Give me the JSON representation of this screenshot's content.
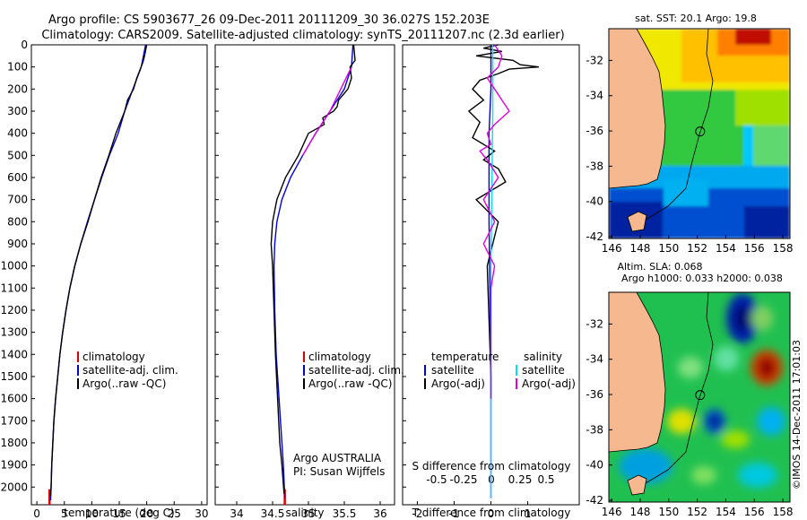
{
  "header": {
    "line1": "Argo profile: CS 5903677_26 09-Dec-2011 20111209_30 36.027S 152.203E",
    "line2": "Climatology: CARS2009. Satellite-adjusted climatology: synTS_20111207.nc (2.3d earlier)"
  },
  "colors": {
    "climatology": "#e00000",
    "satellite": "#0000e0",
    "argo": "#000000",
    "sal_satellite": "#00e0ff",
    "sal_argo": "#e000e0",
    "land": "#f5b88f"
  },
  "depth_ticks": [
    0,
    100,
    200,
    300,
    400,
    500,
    600,
    700,
    800,
    900,
    1000,
    1100,
    1200,
    1300,
    1400,
    1500,
    1600,
    1700,
    1800,
    1900,
    2000
  ],
  "depth_range": [
    0,
    2080
  ],
  "chart_data": [
    {
      "type": "line",
      "name": "temperature",
      "xlabel": "temperature (deg C)",
      "xlim": [
        -1,
        31
      ],
      "x_ticks": [
        0,
        5,
        10,
        15,
        20,
        25,
        30
      ],
      "legend": [
        "climatology",
        "satellite-adj. clim.",
        "Argo(..raw -QC)"
      ],
      "series": [
        {
          "name": "climatology",
          "x": [
            2.3,
            2.3
          ],
          "depth": [
            2010,
            2080
          ]
        },
        {
          "name": "satellite-adj. clim.",
          "x": [
            19.8,
            19.0,
            17.5,
            16.0,
            14.8,
            13.2,
            11.8,
            10.5,
            9.2,
            8.0,
            6.9,
            6.0,
            5.3,
            4.7,
            4.2,
            3.8,
            3.4,
            3.1,
            2.9,
            2.7,
            2.6,
            2.5
          ],
          "depth": [
            0,
            100,
            200,
            300,
            400,
            500,
            600,
            700,
            800,
            900,
            1000,
            1100,
            1200,
            1300,
            1400,
            1500,
            1600,
            1700,
            1800,
            1900,
            2000,
            2060
          ]
        },
        {
          "name": "Argo(..raw -QC)",
          "x": [
            20.0,
            19.6,
            19.3,
            18.2,
            17.6,
            16.5,
            16.0,
            15.2,
            14.4,
            13.1,
            11.7,
            10.5,
            9.3,
            8.0,
            6.9,
            6.0,
            5.3,
            4.7,
            4.2,
            3.8,
            3.4,
            3.1,
            2.9,
            2.7,
            2.6,
            2.5
          ],
          "depth": [
            0,
            50,
            80,
            150,
            200,
            250,
            300,
            350,
            400,
            500,
            600,
            700,
            800,
            900,
            1000,
            1100,
            1200,
            1300,
            1400,
            1500,
            1600,
            1700,
            1800,
            1900,
            2000,
            2040
          ]
        }
      ]
    },
    {
      "type": "line",
      "name": "salinity",
      "xlabel": "salinity",
      "xlim": [
        33.7,
        36.2
      ],
      "x_ticks": [
        34,
        34.5,
        35,
        35.5,
        36
      ],
      "legend": [
        "climatology",
        "satellite-adj. clim.",
        "Argo(..raw -QC)"
      ],
      "annotations": [
        "Argo AUSTRALIA",
        "PI: Susan Wijffels"
      ],
      "series": [
        {
          "name": "climatology",
          "x": [
            34.67,
            34.67
          ],
          "depth": [
            2010,
            2080
          ]
        },
        {
          "name": "satellite-adj. clim.",
          "x": [
            35.62,
            35.6,
            35.5,
            35.3,
            35.1,
            34.92,
            34.75,
            34.63,
            34.56,
            34.53,
            34.52,
            34.53,
            34.55,
            34.57,
            34.59,
            34.61,
            34.63,
            34.65,
            34.67
          ],
          "depth": [
            0,
            100,
            200,
            300,
            400,
            500,
            600,
            700,
            800,
            900,
            1000,
            1200,
            1400,
            1500,
            1600,
            1700,
            1800,
            1900,
            2050
          ]
        },
        {
          "name": "Argo(..raw -QC)",
          "x": [
            35.63,
            35.65,
            35.58,
            35.6,
            35.55,
            35.42,
            35.4,
            35.35,
            35.2,
            35.22,
            35.0,
            34.86,
            34.68,
            34.56,
            34.5,
            34.48,
            34.5,
            34.52,
            34.54,
            34.57,
            34.6,
            34.63,
            34.66
          ],
          "depth": [
            0,
            70,
            100,
            150,
            200,
            250,
            280,
            300,
            330,
            360,
            400,
            500,
            600,
            700,
            800,
            900,
            1000,
            1200,
            1400,
            1600,
            1800,
            1900,
            2030
          ]
        },
        {
          "name": "Argo(-adj)",
          "x": [
            35.6,
            35.45,
            35.3,
            35.1,
            34.92
          ],
          "depth": [
            100,
            200,
            300,
            400,
            500
          ]
        }
      ]
    },
    {
      "type": "line",
      "name": "difference",
      "xlabel": "T difference from climatology",
      "xlabel2": "S difference from climatology",
      "xlim": [
        -2.4,
        2.4
      ],
      "x_ticks": [
        -2,
        -1,
        0,
        1
      ],
      "s_ticks": [
        "-0.5",
        "-0.25",
        "0",
        "0.25",
        "0.5"
      ],
      "legend_left": {
        "title": "temperature",
        "items": [
          "satellite",
          "Argo(-adj)"
        ]
      },
      "legend_right": {
        "title": "salinity",
        "items": [
          "satellite",
          "Argo(-adj)"
        ]
      },
      "series": [
        {
          "name": "temperature satellite",
          "x": [
            0.0,
            0.0,
            -0.05,
            -0.05,
            0.0,
            0.0
          ],
          "depth": [
            0,
            200,
            400,
            800,
            1500,
            2050
          ]
        },
        {
          "name": "temperature Argo(-adj)",
          "x": [
            0.2,
            -0.2,
            0.3,
            -0.4,
            0.6,
            0.8,
            1.3,
            0.5,
            0.2,
            -0.3,
            -0.5,
            -0.2,
            -0.6,
            -0.3,
            -0.5,
            0.1,
            -0.2,
            0.2,
            0.4,
            -0.4,
            0.2,
            -0.1,
            0.0,
            0.0
          ],
          "depth": [
            0,
            15,
            30,
            50,
            70,
            90,
            100,
            110,
            130,
            160,
            200,
            250,
            300,
            350,
            420,
            480,
            520,
            560,
            620,
            700,
            800,
            1000,
            1500,
            1600
          ]
        },
        {
          "name": "salinity satellite",
          "x": [
            0.05,
            0.05,
            0.0,
            0.0
          ],
          "depth": [
            0,
            300,
            1000,
            2050
          ]
        },
        {
          "name": "salinity Argo(-adj)",
          "x": [
            0.1,
            0.3,
            0.2,
            -0.1,
            0.1,
            0.3,
            0.5,
            0.3,
            0.1,
            -0.1,
            0.0,
            -0.3,
            -0.1,
            0.2,
            -0.2,
            0.1,
            -0.2,
            0.1,
            0.0,
            0.0
          ],
          "depth": [
            0,
            50,
            100,
            150,
            200,
            250,
            300,
            330,
            360,
            400,
            450,
            480,
            520,
            600,
            700,
            800,
            900,
            1000,
            1100,
            1600
          ]
        }
      ]
    },
    {
      "type": "heatmap",
      "name": "sst-map",
      "title": "sat. SST: 20.1 Argo: 19.8",
      "x_ticks": [
        146,
        148,
        150,
        152,
        154,
        156,
        158
      ],
      "y_ticks": [
        -32,
        -34,
        -36,
        -38,
        -40,
        -42
      ],
      "xlim": [
        145.8,
        158.5
      ],
      "ylim": [
        -42.1,
        -30.2
      ],
      "marker": {
        "lon": 152.2,
        "lat": -36.03
      }
    },
    {
      "type": "heatmap",
      "name": "sla-map",
      "title1": "Altim. SLA: 0.068",
      "title2": "Argo h1000: 0.033 h2000: 0.038",
      "x_ticks": [
        146,
        148,
        150,
        152,
        154,
        156,
        158
      ],
      "y_ticks": [
        -32,
        -34,
        -36,
        -38,
        -40,
        -42
      ],
      "xlim": [
        145.8,
        158.5
      ],
      "ylim": [
        -42.1,
        -30.2
      ],
      "marker": {
        "lon": 152.2,
        "lat": -36.03
      }
    }
  ],
  "credit": "©IMOS 14-Dec-2011 17:01:03"
}
